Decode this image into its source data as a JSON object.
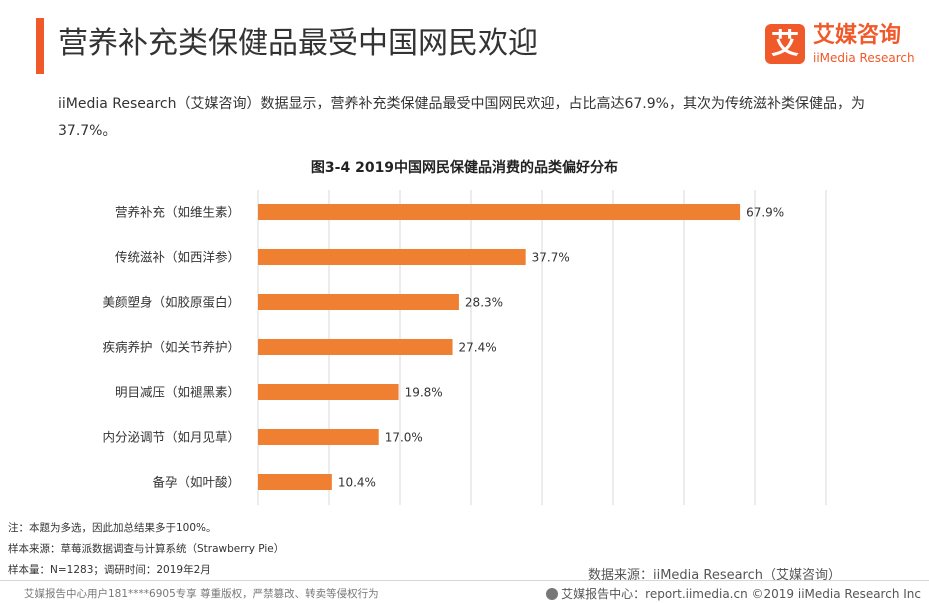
{
  "header": {
    "title": "营养补充类保健品最受中国网民欢迎"
  },
  "logo": {
    "mark": "艾",
    "name_cn": "艾媒咨询",
    "name_en": "iiMedia Research"
  },
  "summary": "iiMedia Research（艾媒咨询）数据显示，营养补充类保健品最受中国网民欢迎，占比高达67.9%，其次为传统滋补类保健品，为37.7%。",
  "chart_data": {
    "type": "bar",
    "orientation": "horizontal",
    "title": "图3-4 2019中国网民保健品消费的品类偏好分布",
    "categories": [
      "营养补充（如维生素）",
      "传统滋补（如西洋参）",
      "美颜塑身（如胶原蛋白）",
      "疾病养护（如关节养护）",
      "明目减压（如褪黑素）",
      "内分泌调节（如月见草）",
      "备孕（如叶酸）"
    ],
    "values": [
      67.9,
      37.7,
      28.3,
      27.4,
      19.8,
      17.0,
      10.4
    ],
    "value_labels": [
      "67.9%",
      "37.7%",
      "28.3%",
      "27.4%",
      "19.8%",
      "17.0%",
      "10.4%"
    ],
    "xlim": [
      0,
      80
    ],
    "grid": true,
    "bar_color": "#ef7f31",
    "grid_color": "#d9d9d9"
  },
  "notes": [
    "注：本题为多选，因此加总结果多于100%。",
    "样本来源：草莓派数据调查与计算系统（Strawberry Pie）",
    "样本量：N=1283；调研时间：2019年2月"
  ],
  "source": "数据来源：iiMedia Research（艾媒咨询）",
  "footer": {
    "left": "艾媒报告中心用户181****6905专享 尊重版权，严禁篡改、转卖等侵权行为",
    "right": "艾媒报告中心：report.iimedia.cn    ©2019  iiMedia Research  Inc"
  },
  "colors": {
    "accent": "#f0592a"
  }
}
